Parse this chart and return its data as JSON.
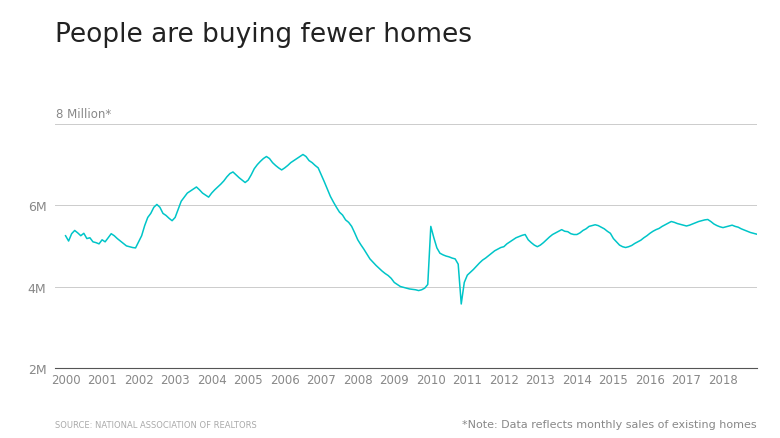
{
  "title": "People are buying fewer homes",
  "y_label_top": "8 Million*",
  "source_text": "SOURCE: NATIONAL ASSOCIATION OF REALTORS",
  "note_text": "*Note: Data reflects monthly sales of existing homes",
  "line_color": "#00C5C8",
  "background_color": "#ffffff",
  "grid_color": "#cccccc",
  "axis_color": "#333333",
  "ylim": [
    2000000,
    8700000
  ],
  "yticks": [
    2000000,
    4000000,
    6000000,
    8000000
  ],
  "ytick_labels": [
    "2M",
    "4M",
    "6M",
    ""
  ],
  "xlim_start": 1999.7,
  "xlim_end": 2018.92,
  "xtick_years": [
    2000,
    2001,
    2002,
    2003,
    2004,
    2005,
    2006,
    2007,
    2008,
    2009,
    2010,
    2011,
    2012,
    2013,
    2014,
    2015,
    2016,
    2017,
    2018
  ],
  "monthly_data": [
    5250000,
    5120000,
    5300000,
    5380000,
    5320000,
    5250000,
    5310000,
    5180000,
    5200000,
    5100000,
    5080000,
    5050000,
    5150000,
    5100000,
    5200000,
    5300000,
    5250000,
    5180000,
    5120000,
    5060000,
    5000000,
    4980000,
    4960000,
    4950000,
    5100000,
    5250000,
    5500000,
    5700000,
    5800000,
    5950000,
    6020000,
    5950000,
    5800000,
    5750000,
    5680000,
    5620000,
    5700000,
    5900000,
    6100000,
    6200000,
    6300000,
    6350000,
    6400000,
    6450000,
    6380000,
    6300000,
    6250000,
    6200000,
    6300000,
    6380000,
    6450000,
    6520000,
    6600000,
    6700000,
    6780000,
    6820000,
    6750000,
    6680000,
    6620000,
    6560000,
    6620000,
    6750000,
    6900000,
    7000000,
    7080000,
    7150000,
    7200000,
    7150000,
    7050000,
    6980000,
    6920000,
    6870000,
    6920000,
    6980000,
    7050000,
    7100000,
    7150000,
    7200000,
    7250000,
    7200000,
    7100000,
    7050000,
    6980000,
    6920000,
    6750000,
    6580000,
    6400000,
    6220000,
    6080000,
    5950000,
    5830000,
    5760000,
    5640000,
    5580000,
    5480000,
    5320000,
    5150000,
    5030000,
    4920000,
    4800000,
    4680000,
    4600000,
    4520000,
    4450000,
    4380000,
    4320000,
    4270000,
    4200000,
    4100000,
    4050000,
    4000000,
    3980000,
    3960000,
    3940000,
    3930000,
    3920000,
    3900000,
    3920000,
    3960000,
    4050000,
    5480000,
    5200000,
    4950000,
    4820000,
    4780000,
    4750000,
    4730000,
    4700000,
    4680000,
    4550000,
    3570000,
    4100000,
    4280000,
    4350000,
    4420000,
    4500000,
    4580000,
    4650000,
    4700000,
    4760000,
    4820000,
    4880000,
    4920000,
    4960000,
    4980000,
    5050000,
    5100000,
    5150000,
    5200000,
    5230000,
    5260000,
    5280000,
    5150000,
    5080000,
    5020000,
    4980000,
    5020000,
    5080000,
    5150000,
    5220000,
    5280000,
    5320000,
    5360000,
    5400000,
    5360000,
    5350000,
    5300000,
    5280000,
    5280000,
    5320000,
    5380000,
    5420000,
    5480000,
    5500000,
    5520000,
    5500000,
    5460000,
    5420000,
    5360000,
    5310000,
    5180000,
    5100000,
    5020000,
    4980000,
    4960000,
    4980000,
    5010000,
    5060000,
    5100000,
    5140000,
    5200000,
    5250000,
    5310000,
    5360000,
    5400000,
    5430000,
    5480000,
    5520000,
    5560000,
    5600000,
    5580000,
    5550000,
    5530000,
    5510000,
    5490000,
    5510000,
    5540000,
    5570000,
    5600000,
    5620000,
    5640000,
    5650000,
    5600000,
    5540000,
    5500000,
    5470000,
    5450000,
    5470000,
    5490000,
    5510000,
    5480000,
    5460000,
    5420000,
    5390000,
    5360000,
    5330000,
    5310000,
    5290000
  ]
}
